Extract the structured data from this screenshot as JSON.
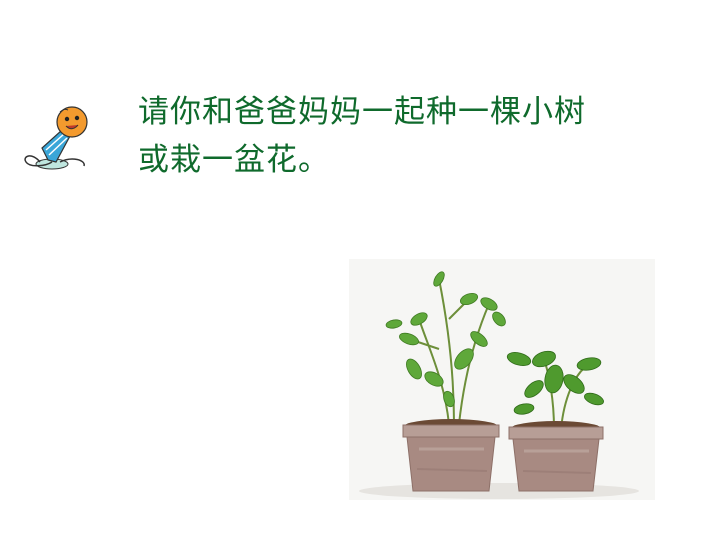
{
  "slide": {
    "instruction_lines": [
      "请你和爸爸妈妈一起种一棵小树",
      "或栽一盆花。"
    ]
  },
  "icons": {
    "mascot": "cartoon-microphone-character-icon",
    "photo": "potted-plants-photo"
  },
  "colors": {
    "text": "#0f6a2c",
    "background": "#ffffff",
    "mascot_head": "#f39a2e",
    "mascot_body": "#3aa6d8",
    "pot": "#a88a82",
    "leaf": "#5fa83a"
  }
}
